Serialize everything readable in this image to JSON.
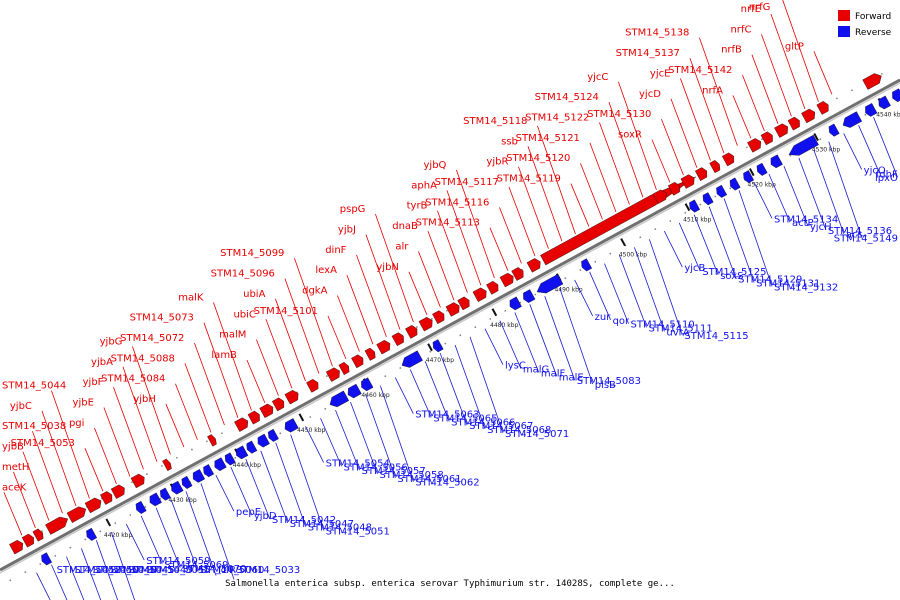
{
  "caption": "Salmonella enterica subsp. enterica serovar Typhimurium str. 14028S, complete ge...",
  "colors": {
    "forward": "#e60000",
    "reverse": "#1010ee",
    "leader_forward": "#e60000",
    "leader_reverse": "#1a1ad0",
    "backbone": "#9a9a9a"
  },
  "legend": [
    {
      "label": "Forward",
      "strand": "forward"
    },
    {
      "label": "Reverse",
      "strand": "reverse"
    }
  ],
  "ticks": [
    "4420 kbp",
    "4430 kbp",
    "4440 kbp",
    "4450 kbp",
    "4460 kbp",
    "4470 kbp",
    "4480 kbp",
    "4490 kbp",
    "4500 kbp",
    "4510 kbp",
    "4520 kbp",
    "4530 kbp",
    "4540 kbp"
  ],
  "forward_labels": [
    "aceK",
    "metH",
    "yjbB",
    "STM14_5038",
    "yjbC",
    "STM14_5044",
    "STM14_5053",
    "pgi",
    "yjbE",
    "yjbF",
    "yjbA",
    "yjbG",
    "yjbH",
    "STM14_5084",
    "STM14_5088",
    "STM14_5072",
    "STM14_5073",
    "malK",
    "lamB",
    "malM",
    "ubiC",
    "ubiA",
    "STM14_5096",
    "STM14_5099",
    "STM14_5101",
    "dgkA",
    "lexA",
    "dinF",
    "yjbJ",
    "pspG",
    "yjbN",
    "alr",
    "dnaB",
    "tyrB",
    "aphA",
    "yjbQ",
    "STM14_5113",
    "STM14_5116",
    "STM14_5117",
    "yjbR",
    "ssb",
    "STM14_5118",
    "STM14_5119",
    "STM14_5120",
    "STM14_5121",
    "STM14_5122",
    "STM14_5124",
    "yjcC",
    "soxR",
    "STM14_5130",
    "yjcD",
    "yjcE",
    "STM14_5137",
    "STM14_5138",
    "nrfA",
    "STM14_5142",
    "nrfB",
    "nrfC",
    "nrfE",
    "nrfG",
    "gltP"
  ],
  "reverse_labels": [
    "STM14_5052",
    "STM14_5050",
    "STM14_5049",
    "STM14_5045",
    "STM14_5043",
    "STM14_5055",
    "STM14_5059",
    "STM14_5069",
    "STM14_5070",
    "STM14_5060",
    "iclR",
    "STM14_5033",
    "pepE",
    "yjbD",
    "STM14_5042",
    "STM14_5047",
    "STM14_5048",
    "STM14_5051",
    "STM14_5054",
    "STM14_5056",
    "STM14_5057",
    "STM14_5058",
    "STM14_5061",
    "STM14_5062",
    "STM14_5063",
    "STM14_5065",
    "STM14_5066",
    "STM14_5067",
    "STM14_5068",
    "STM14_5071",
    "lysC",
    "malG",
    "malF",
    "malE",
    "STM14_5083",
    "plsB",
    "zur",
    "qor",
    "STM14_5110",
    "STM14_5111",
    "uvrA",
    "STM14_5115",
    "yjcB",
    "STM14_5125",
    "soxS",
    "STM14_5129",
    "STM14_5131",
    "STM14_5132",
    "STM14_5134",
    "actP",
    "yjcH",
    "STM14_5136",
    "acs",
    "STM14_5149",
    "yjcO",
    "fdhF",
    "lpxO"
  ]
}
